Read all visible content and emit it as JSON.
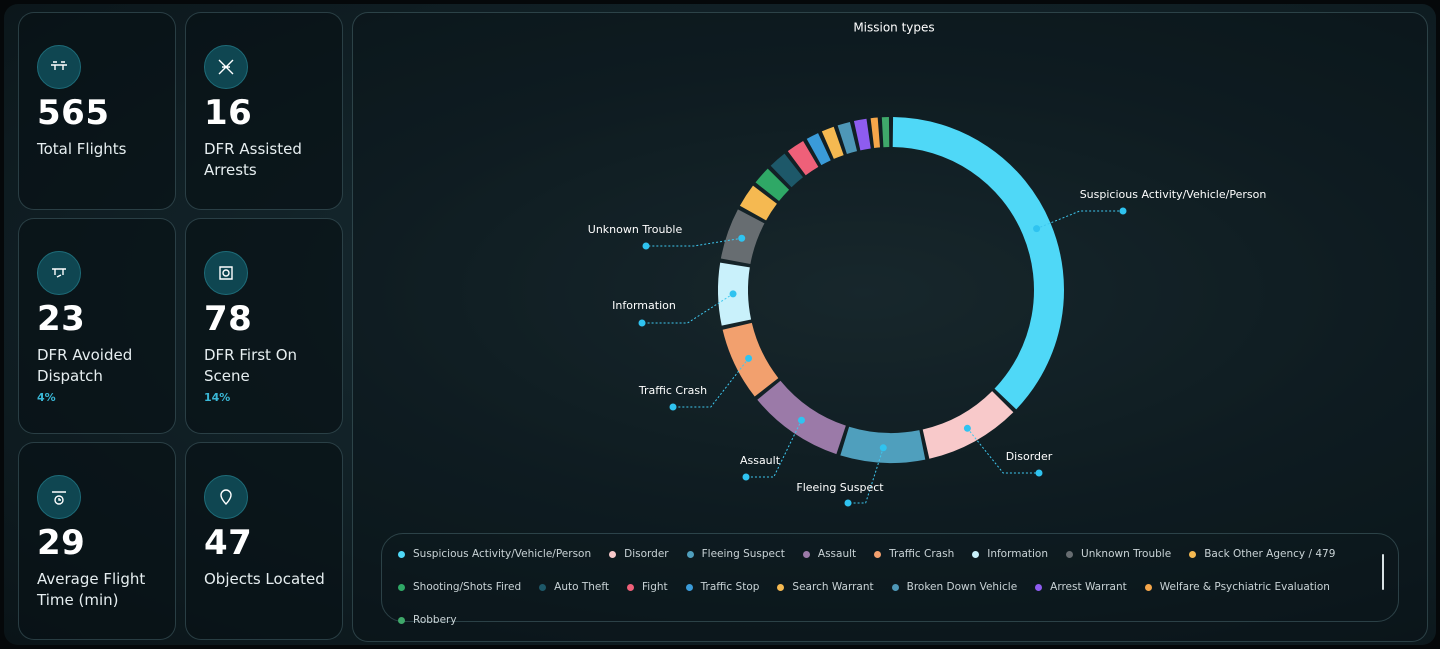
{
  "cards": [
    {
      "value": 565,
      "label": "Total Flights"
    },
    {
      "value": 16,
      "label": "DFR Assisted Arrests"
    },
    {
      "value": 23,
      "label": "DFR Avoided Dispatch",
      "percent": "4%"
    },
    {
      "value": 78,
      "label": "DFR First On Scene",
      "percent": "14%"
    },
    {
      "value": 29,
      "label": "Average Flight Time (min)"
    },
    {
      "value": 47,
      "label": "Objects Located"
    }
  ],
  "chart_data": {
    "type": "donut",
    "title": "Mission types",
    "categories": [
      "Suspicious Activity/Vehicle/Person",
      "Disorder",
      "Fleeing Suspect",
      "Assault",
      "Traffic Crash",
      "Information",
      "Unknown Trouble",
      "Back Other Agency / 479",
      "Shooting/Shots Fired",
      "Auto Theft",
      "Fight",
      "Traffic Stop",
      "Search Warrant",
      "Broken Down Vehicle",
      "Arrest Warrant",
      "Welfare & Psychiatric Evaluation",
      "Robbery"
    ],
    "values": [
      36,
      9,
      8,
      9,
      7,
      6,
      5,
      2.5,
      2,
      2,
      2,
      1.5,
      1.5,
      1.5,
      1.5,
      1,
      1
    ],
    "colors": [
      "#4fd8f7",
      "#f8c9ca",
      "#4f9fbd",
      "#9b7aa8",
      "#f2a06e",
      "#c9f1fb",
      "#676d71",
      "#f5b951",
      "#2fa866",
      "#1d5869",
      "#ef6079",
      "#3a9bd9",
      "#f5b951",
      "#4e97b7",
      "#8e5cf0",
      "#f5a64a",
      "#3fa86a"
    ]
  }
}
